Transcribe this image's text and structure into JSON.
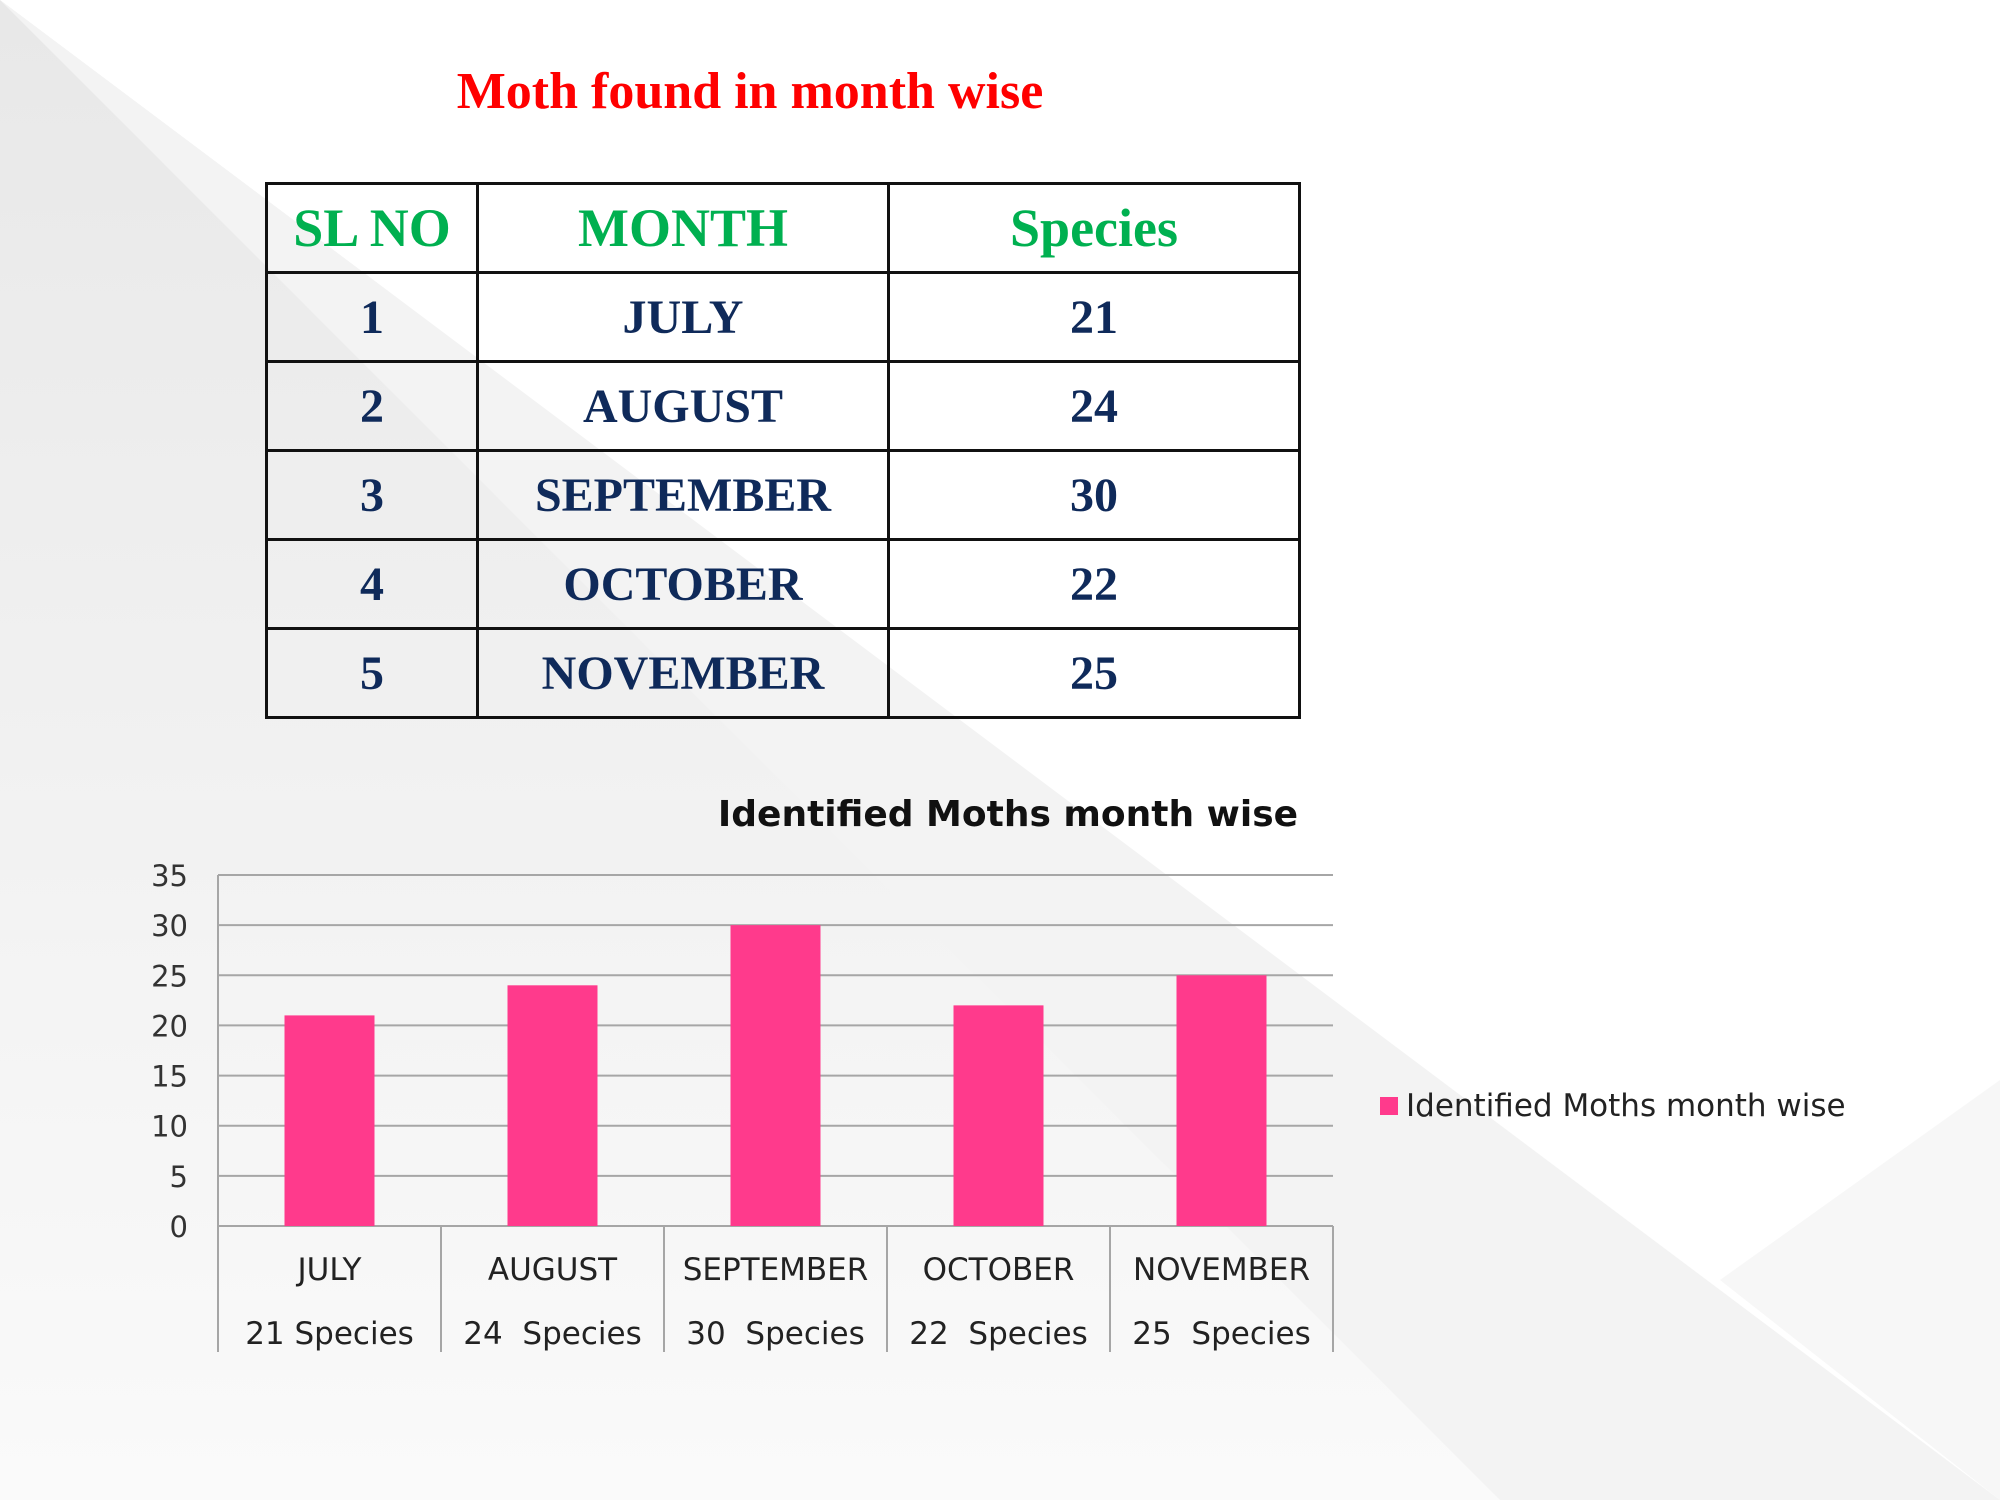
{
  "title": "Moth found in month wise",
  "table": {
    "headers": [
      "SL NO",
      "MONTH",
      "Species"
    ],
    "rows": [
      [
        "1",
        "JULY",
        "21"
      ],
      [
        "2",
        "AUGUST",
        "24"
      ],
      [
        "3",
        "SEPTEMBER",
        "30"
      ],
      [
        "4",
        "OCTOBER",
        "22"
      ],
      [
        "5",
        "NOVEMBER",
        "25"
      ]
    ]
  },
  "chart_data": {
    "type": "bar",
    "title": "Identified Moths month wise",
    "categories": [
      "JULY",
      "AUGUST",
      "SEPTEMBER",
      "OCTOBER",
      "NOVEMBER"
    ],
    "category_sublabels": [
      "21 Species",
      "24  Species",
      "30  Species",
      "22  Species",
      "25  Species"
    ],
    "series": [
      {
        "name": "Identified Moths month wise",
        "values": [
          21,
          24,
          30,
          22,
          25
        ],
        "color": "#ff3a8c"
      }
    ],
    "ylim": [
      0,
      35
    ],
    "yticks": [
      0,
      5,
      10,
      15,
      20,
      25,
      30,
      35
    ],
    "grid": true,
    "legend": "right"
  }
}
